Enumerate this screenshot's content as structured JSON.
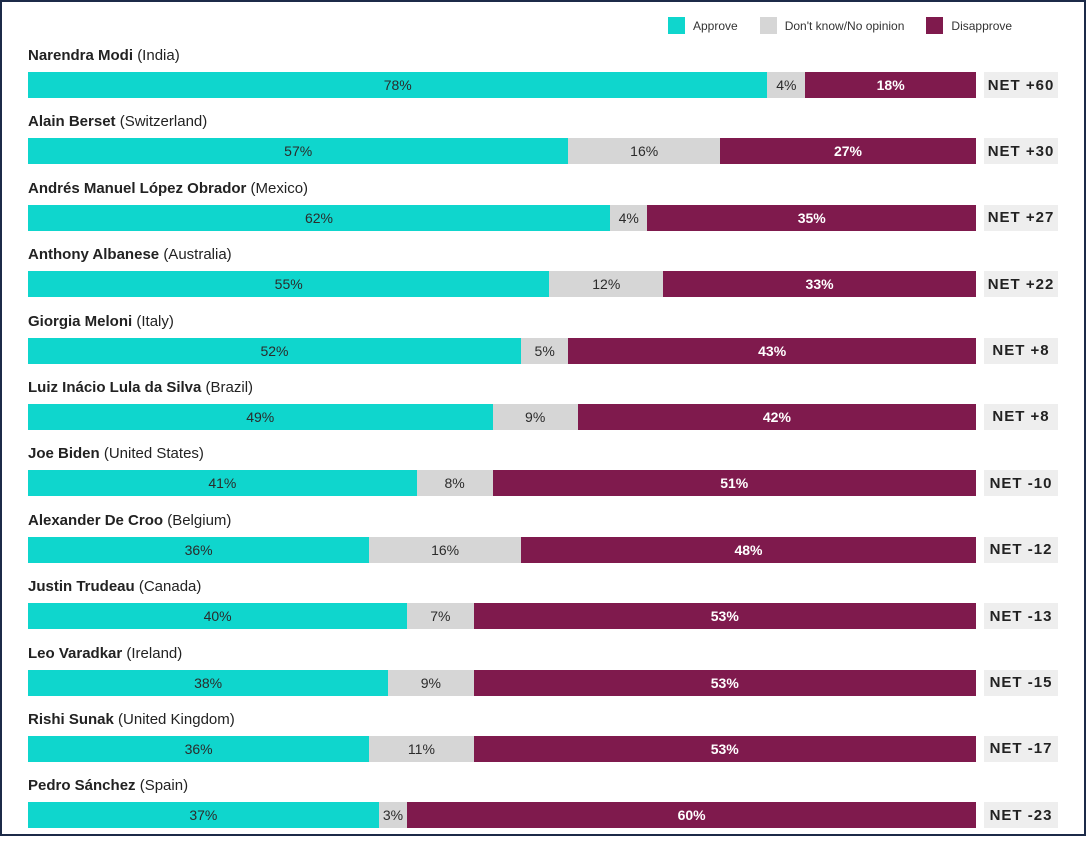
{
  "chart_data": {
    "type": "bar",
    "orientation": "horizontal",
    "stacked": true,
    "xlim": [
      0,
      100
    ],
    "legend": {
      "placement": "top-right",
      "items": [
        {
          "key": "approve",
          "label": "Approve",
          "color": "#0fd6cd"
        },
        {
          "key": "dk",
          "label": "Don't know/No opinion",
          "color": "#d6d6d6"
        },
        {
          "key": "disapprove",
          "label": "Disapprove",
          "color": "#7f1a4d"
        }
      ]
    },
    "categories": [
      {
        "name": "Narendra Modi",
        "country": "(India)",
        "net": "NET +60"
      },
      {
        "name": "Alain Berset",
        "country": "(Switzerland)",
        "net": "NET +30"
      },
      {
        "name": "Andrés Manuel López Obrador",
        "country": "(Mexico)",
        "net": "NET +27"
      },
      {
        "name": "Anthony Albanese",
        "country": "(Australia)",
        "net": "NET +22"
      },
      {
        "name": "Giorgia Meloni",
        "country": "(Italy)",
        "net": "NET +8"
      },
      {
        "name": "Luiz Inácio Lula da Silva",
        "country": "(Brazil)",
        "net": "NET +8"
      },
      {
        "name": "Joe Biden",
        "country": "(United States)",
        "net": "NET -10"
      },
      {
        "name": "Alexander De Croo",
        "country": "(Belgium)",
        "net": "NET -12"
      },
      {
        "name": "Justin Trudeau",
        "country": "(Canada)",
        "net": "NET -13"
      },
      {
        "name": "Leo Varadkar",
        "country": "(Ireland)",
        "net": "NET -15"
      },
      {
        "name": "Rishi Sunak",
        "country": "(United Kingdom)",
        "net": "NET -17"
      },
      {
        "name": "Pedro Sánchez",
        "country": "(Spain)",
        "net": "NET -23"
      }
    ],
    "series": [
      {
        "key": "approve",
        "name": "Approve",
        "values": [
          78,
          57,
          62,
          55,
          52,
          49,
          41,
          36,
          40,
          38,
          36,
          37
        ]
      },
      {
        "key": "dk",
        "name": "Don't know/No opinion",
        "values": [
          4,
          16,
          4,
          12,
          5,
          9,
          8,
          16,
          7,
          9,
          11,
          3
        ]
      },
      {
        "key": "disapprove",
        "name": "Disapprove",
        "values": [
          18,
          27,
          35,
          33,
          43,
          42,
          51,
          48,
          53,
          53,
          53,
          60
        ]
      }
    ],
    "value_suffix": "%"
  }
}
